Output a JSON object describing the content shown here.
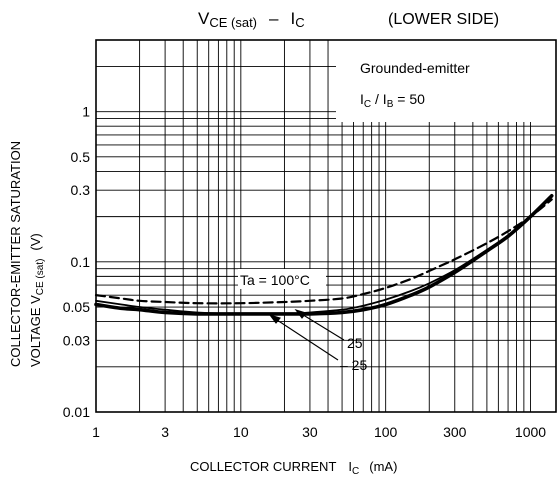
{
  "chart_data": {
    "type": "line",
    "title_parts": {
      "main": "V",
      "main_sub": "CE (sat)",
      "sep": "–",
      "second": "I",
      "second_sub": "C",
      "note": "(LOWER SIDE)"
    },
    "annotation": {
      "line1": "Grounded-emitter",
      "line2_main": "I",
      "line2_sub1": "C",
      "line2_sep": " / I",
      "line2_sub2": "B",
      "line2_rest": " = 50"
    },
    "xlabel": {
      "prefix": "COLLECTOR CURRENT",
      "sym": "I",
      "sub": "C",
      "unit": "(mA)"
    },
    "ylabel": {
      "line1": "COLLECTOR-EMITTER SATURATION",
      "line2_text": "VOLTAGE   V",
      "line2_sub": "CE (sat)",
      "unit": "(V)"
    },
    "x_scale": "log",
    "y_scale": "log",
    "xlim": [
      1,
      1500
    ],
    "ylim": [
      0.01,
      3
    ],
    "grid": true,
    "x_ticks": [
      {
        "value": 1,
        "label": "1"
      },
      {
        "value": 3,
        "label": "3"
      },
      {
        "value": 10,
        "label": "10"
      },
      {
        "value": 30,
        "label": "30"
      },
      {
        "value": 100,
        "label": "100"
      },
      {
        "value": 300,
        "label": "300"
      },
      {
        "value": 1000,
        "label": "1000"
      }
    ],
    "y_ticks": [
      {
        "value": 0.01,
        "label": "0.01"
      },
      {
        "value": 0.03,
        "label": "0.03"
      },
      {
        "value": 0.05,
        "label": "0.05"
      },
      {
        "value": 0.1,
        "label": "0.1"
      },
      {
        "value": 0.3,
        "label": "0.3"
      },
      {
        "value": 0.5,
        "label": "0.5"
      },
      {
        "value": 1,
        "label": "1"
      }
    ],
    "series": [
      {
        "name": "Ta = 100°C",
        "style": "dashed",
        "x": [
          1,
          1.5,
          2,
          3,
          5,
          10,
          20,
          30,
          50,
          70,
          100,
          150,
          200,
          300,
          500,
          700,
          1000,
          1400
        ],
        "y": [
          0.06,
          0.057,
          0.055,
          0.054,
          0.053,
          0.053,
          0.054,
          0.055,
          0.057,
          0.061,
          0.067,
          0.077,
          0.087,
          0.104,
          0.133,
          0.16,
          0.2,
          0.26
        ]
      },
      {
        "name": "25",
        "style": "solid",
        "x": [
          1,
          1.5,
          2,
          3,
          5,
          10,
          20,
          30,
          50,
          70,
          100,
          150,
          200,
          300,
          500,
          700,
          1000,
          1400
        ],
        "y": [
          0.055,
          0.052,
          0.05,
          0.048,
          0.046,
          0.045,
          0.045,
          0.046,
          0.048,
          0.051,
          0.056,
          0.064,
          0.072,
          0.088,
          0.12,
          0.15,
          0.2,
          0.27
        ]
      },
      {
        "name": "– 25",
        "style": "solid-thick",
        "x": [
          1,
          1.5,
          2,
          3,
          5,
          10,
          20,
          30,
          50,
          70,
          100,
          150,
          200,
          300,
          500,
          700,
          1000,
          1400
        ],
        "y": [
          0.052,
          0.049,
          0.048,
          0.046,
          0.045,
          0.045,
          0.045,
          0.045,
          0.046,
          0.048,
          0.052,
          0.06,
          0.068,
          0.085,
          0.118,
          0.148,
          0.2,
          0.275
        ]
      }
    ]
  }
}
